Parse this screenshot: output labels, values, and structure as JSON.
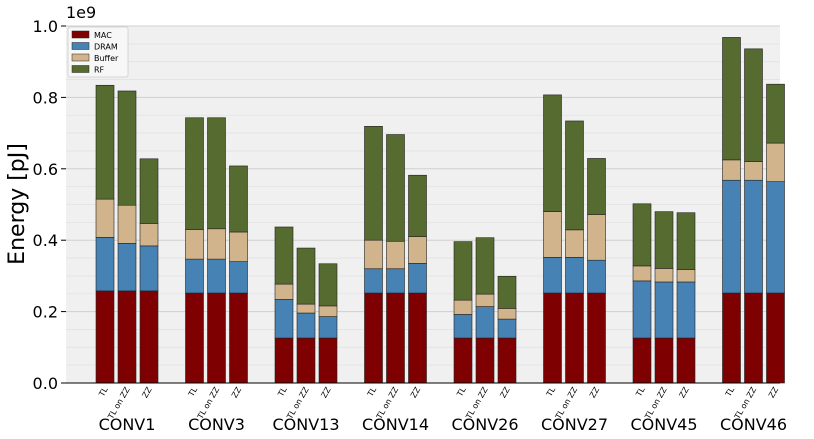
{
  "chart_data": {
    "type": "bar",
    "stacked": true,
    "ylabel": "Energy [pJ]",
    "yscale_label": "1e9",
    "ylim": [
      0,
      1.0
    ],
    "yticks": [
      "0.0",
      "0.2",
      "0.4",
      "0.6",
      "0.8",
      "1.0"
    ],
    "grid": true,
    "legend_position": "top-left",
    "groups": [
      "CONV1",
      "CONV3",
      "CONV13",
      "CONV14",
      "CONV26",
      "CONV27",
      "CONV45",
      "CONV46"
    ],
    "variants": [
      "TL",
      "TL on ZZ",
      "ZZ"
    ],
    "series": [
      {
        "name": "MAC",
        "color": "#7f0000",
        "values": [
          [
            0.258,
            0.258,
            0.258
          ],
          [
            0.252,
            0.252,
            0.252
          ],
          [
            0.126,
            0.126,
            0.126
          ],
          [
            0.252,
            0.252,
            0.252
          ],
          [
            0.126,
            0.126,
            0.126
          ],
          [
            0.252,
            0.252,
            0.252
          ],
          [
            0.126,
            0.126,
            0.126
          ],
          [
            0.252,
            0.252,
            0.252
          ]
        ]
      },
      {
        "name": "DRAM",
        "color": "#4682b4",
        "values": [
          [
            0.15,
            0.133,
            0.126
          ],
          [
            0.095,
            0.095,
            0.088
          ],
          [
            0.108,
            0.07,
            0.06
          ],
          [
            0.068,
            0.068,
            0.083
          ],
          [
            0.066,
            0.088,
            0.053
          ],
          [
            0.1,
            0.1,
            0.092
          ],
          [
            0.16,
            0.157,
            0.157
          ],
          [
            0.316,
            0.316,
            0.312
          ]
        ]
      },
      {
        "name": "Buffer",
        "color": "#d2b48c",
        "values": [
          [
            0.107,
            0.107,
            0.063
          ],
          [
            0.083,
            0.085,
            0.083
          ],
          [
            0.043,
            0.025,
            0.03
          ],
          [
            0.08,
            0.077,
            0.075
          ],
          [
            0.04,
            0.035,
            0.03
          ],
          [
            0.128,
            0.077,
            0.128
          ],
          [
            0.042,
            0.038,
            0.035
          ],
          [
            0.057,
            0.052,
            0.108
          ]
        ]
      },
      {
        "name": "RF",
        "color": "#556b2f",
        "values": [
          [
            0.319,
            0.32,
            0.181
          ],
          [
            0.313,
            0.311,
            0.185
          ],
          [
            0.16,
            0.157,
            0.118
          ],
          [
            0.319,
            0.299,
            0.172
          ],
          [
            0.164,
            0.158,
            0.09
          ],
          [
            0.327,
            0.305,
            0.157
          ],
          [
            0.174,
            0.159,
            0.159
          ],
          [
            0.343,
            0.316,
            0.165
          ]
        ]
      }
    ]
  }
}
